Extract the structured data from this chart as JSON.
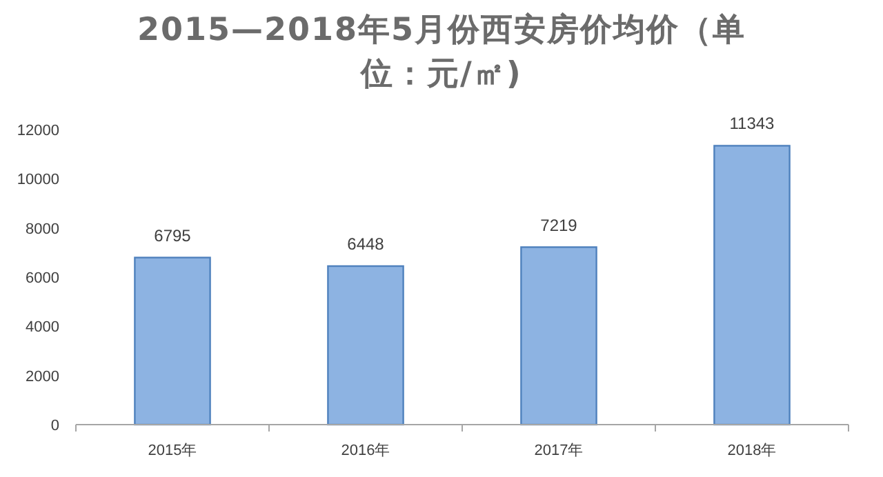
{
  "chart_data": {
    "type": "bar",
    "title": "2015—2018年5月份西安房价均价（单位：元/㎡)",
    "categories": [
      "2015年",
      "2016年",
      "2017年",
      "2018年"
    ],
    "values": [
      6795,
      6448,
      7219,
      11343
    ],
    "color": "#8db3e2",
    "ylim": [
      0,
      12000
    ],
    "yticks": [
      0,
      2000,
      4000,
      6000,
      8000,
      10000,
      12000
    ],
    "data_labels": true,
    "grid": false
  }
}
